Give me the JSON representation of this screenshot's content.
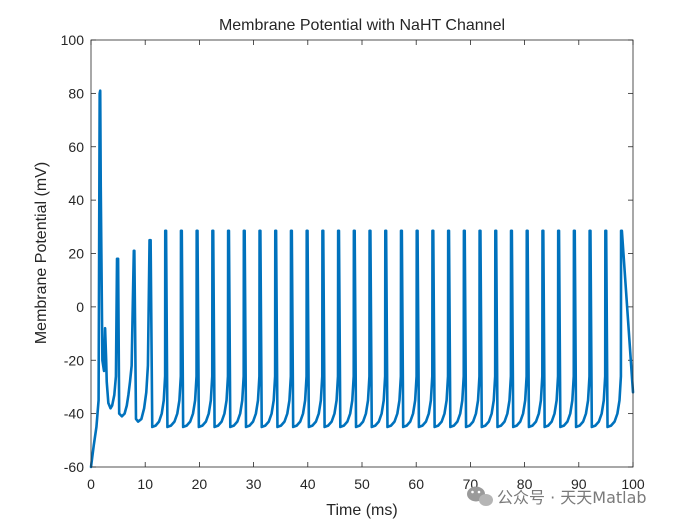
{
  "chart_data": {
    "type": "line",
    "title": "Membrane Potential with NaHT Channel",
    "xlabel": "Time (ms)",
    "ylabel": "Membrane Potential (mV)",
    "xlim": [
      0,
      100
    ],
    "ylim": [
      -60,
      100
    ],
    "xticks": [
      0,
      10,
      20,
      30,
      40,
      50,
      60,
      70,
      80,
      90,
      100
    ],
    "yticks": [
      -60,
      -40,
      -20,
      0,
      20,
      40,
      60,
      80,
      100
    ],
    "grid": false,
    "line_color": "#0072BD",
    "series": [
      {
        "x": [
          0,
          0.5,
          1.0,
          1.4,
          1.6,
          1.7,
          1.8,
          2.1,
          2.4,
          2.6,
          2.8,
          2.9,
          3.2,
          3.6,
          3.9,
          4.3,
          4.6,
          4.8,
          5.0,
          5.2,
          5.7,
          6.2,
          6.6,
          6.9,
          7.2,
          7.5,
          7.7,
          7.9,
          8.0,
          8.3,
          8.7,
          9.3,
          9.8,
          10.2,
          10.5,
          10.8,
          11.0
        ],
        "y": [
          -60,
          -52,
          -45,
          -35,
          80,
          81,
          45,
          -20,
          -24,
          -8,
          -20,
          -28,
          -36,
          -38,
          -37,
          -33,
          -26,
          18,
          18,
          -40,
          -41,
          -40,
          -37,
          -33,
          -28,
          -22,
          0,
          21,
          21,
          -42,
          -43,
          -42,
          -38,
          -32,
          -22,
          25,
          25
        ]
      }
    ],
    "spikes": {
      "first_regular_spike_ms": 13.8,
      "interval_ms": 2.9,
      "last_spike_ms": 100,
      "peak_mV": 28.5,
      "trough_mV": -45
    }
  },
  "watermark": {
    "text": "公众号 · 天天Matlab",
    "icon": "wechat-icon"
  }
}
